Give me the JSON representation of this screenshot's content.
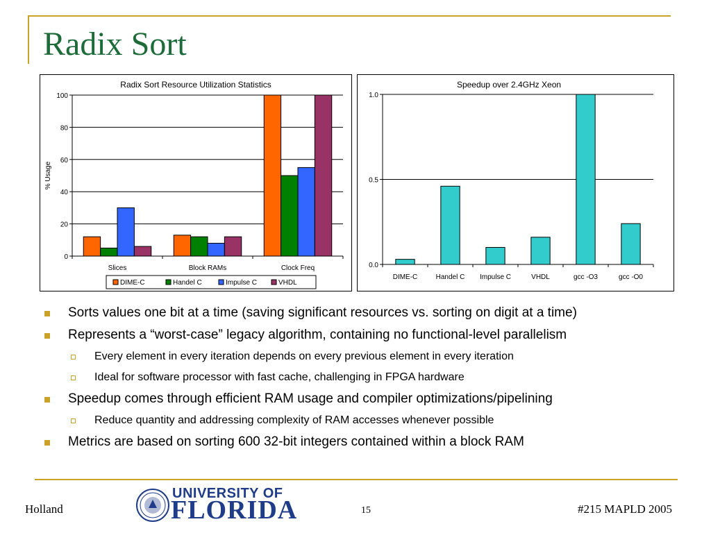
{
  "slide": {
    "title": "Radix Sort",
    "bullets": [
      {
        "level": 1,
        "text": "Sorts values one bit at a time (saving significant resources vs. sorting on digit at a time)"
      },
      {
        "level": 1,
        "text": "Represents a “worst-case” legacy algorithm, containing no functional-level parallelism"
      },
      {
        "level": 2,
        "text": "Every element in every iteration depends on every previous element in every iteration"
      },
      {
        "level": 2,
        "text": "Ideal for software processor with fast cache, challenging in FPGA hardware"
      },
      {
        "level": 1,
        "text": "Speedup comes through efficient RAM usage and compiler optimizations/pipelining"
      },
      {
        "level": 2,
        "text": "Reduce quantity and addressing complexity of RAM accesses whenever possible"
      },
      {
        "level": 1,
        "text": "Metrics are based on sorting 600 32-bit integers contained within a block RAM"
      }
    ],
    "footer": {
      "left": "Holland",
      "page": "15",
      "right": "#215 MAPLD 2005"
    },
    "logo": {
      "line1": "UNIVERSITY OF",
      "line2": "FLORIDA",
      "color": "#1f3c88"
    },
    "accent_color": "#c9a227",
    "title_color": "#1e6b3a"
  },
  "chart_data": [
    {
      "type": "bar",
      "title": "Radix Sort Resource Utilization Statistics",
      "ylabel": "% Usage",
      "xlabel": "",
      "categories": [
        "Slices",
        "Block RAMs",
        "Clock Freq"
      ],
      "ylim": [
        0,
        100
      ],
      "yticks": [
        0,
        20,
        40,
        60,
        80,
        100
      ],
      "ytick_labels": [
        "0",
        "20",
        "40",
        "60",
        "80",
        "100"
      ],
      "grid": true,
      "legend": "bottom",
      "series": [
        {
          "name": "DIME-C",
          "color": "#ff6600",
          "values": [
            12,
            13,
            100
          ]
        },
        {
          "name": "Handel C",
          "color": "#008000",
          "values": [
            5,
            12,
            50
          ]
        },
        {
          "name": "Impulse C",
          "color": "#3366ff",
          "values": [
            30,
            8,
            55
          ]
        },
        {
          "name": "VHDL",
          "color": "#993366",
          "values": [
            6,
            12,
            100
          ]
        }
      ]
    },
    {
      "type": "bar",
      "title": "Speedup over 2.4GHz Xeon",
      "xlabel": "",
      "ylabel": "",
      "categories": [
        "DIME-C",
        "Handel C",
        "Impulse C",
        "VHDL",
        "gcc -O3",
        "gcc -O0"
      ],
      "ylim": [
        0,
        1.0
      ],
      "yticks": [
        0,
        0.5,
        1.0
      ],
      "ytick_labels": [
        "0.0",
        "0.5",
        "1.0"
      ],
      "grid": true,
      "legend": "none",
      "series": [
        {
          "color": "#33cccc",
          "values": [
            0.03,
            0.46,
            0.1,
            0.16,
            1.0,
            0.24
          ]
        }
      ]
    }
  ]
}
